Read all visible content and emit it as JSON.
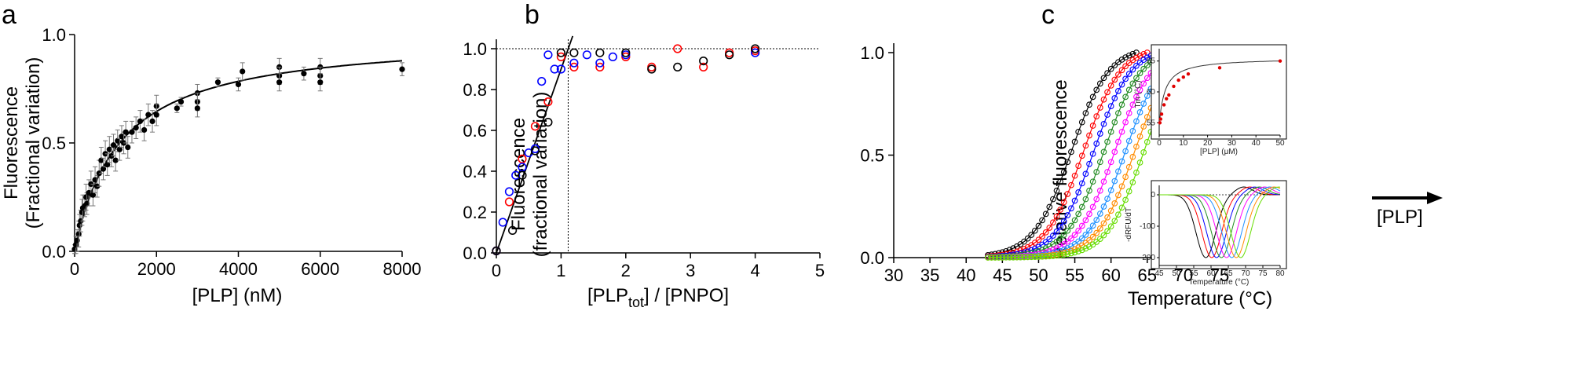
{
  "chart_data": [
    {
      "panel": "a",
      "type": "scatter",
      "xlabel": "[PLP] (nM)",
      "ylabel": [
        "Fluorescence",
        "(Fractional variation)"
      ],
      "xlim": [
        0,
        8000
      ],
      "ylim": [
        0,
        1.0
      ],
      "x_ticks": [
        0,
        2000,
        4000,
        6000,
        8000
      ],
      "y_ticks": [
        0.0,
        0.5,
        1.0
      ],
      "y_tick_labels": [
        "0.0",
        "0.5",
        "1.0"
      ],
      "fit": {
        "model": "hyperbolic",
        "Bmax": 1.0,
        "Kd": 1100
      },
      "points": [
        {
          "x": 0,
          "y": 0.01,
          "e": 0.02
        },
        {
          "x": 30,
          "y": 0.03,
          "e": 0.04
        },
        {
          "x": 60,
          "y": 0.05,
          "e": 0.05
        },
        {
          "x": 100,
          "y": 0.08,
          "e": 0.06
        },
        {
          "x": 120,
          "y": 0.12,
          "e": 0.05
        },
        {
          "x": 150,
          "y": 0.14,
          "e": 0.05
        },
        {
          "x": 180,
          "y": 0.18,
          "e": 0.06
        },
        {
          "x": 200,
          "y": 0.2,
          "e": 0.06
        },
        {
          "x": 250,
          "y": 0.21,
          "e": 0.05
        },
        {
          "x": 280,
          "y": 0.25,
          "e": 0.06
        },
        {
          "x": 300,
          "y": 0.22,
          "e": 0.05
        },
        {
          "x": 350,
          "y": 0.27,
          "e": 0.06
        },
        {
          "x": 400,
          "y": 0.31,
          "e": 0.06
        },
        {
          "x": 450,
          "y": 0.26,
          "e": 0.05
        },
        {
          "x": 500,
          "y": 0.33,
          "e": 0.06
        },
        {
          "x": 550,
          "y": 0.3,
          "e": 0.05
        },
        {
          "x": 600,
          "y": 0.36,
          "e": 0.06
        },
        {
          "x": 650,
          "y": 0.42,
          "e": 0.06
        },
        {
          "x": 700,
          "y": 0.38,
          "e": 0.05
        },
        {
          "x": 750,
          "y": 0.45,
          "e": 0.06
        },
        {
          "x": 800,
          "y": 0.4,
          "e": 0.05
        },
        {
          "x": 850,
          "y": 0.47,
          "e": 0.06
        },
        {
          "x": 900,
          "y": 0.44,
          "e": 0.05
        },
        {
          "x": 950,
          "y": 0.49,
          "e": 0.05
        },
        {
          "x": 1000,
          "y": 0.42,
          "e": 0.05
        },
        {
          "x": 1050,
          "y": 0.51,
          "e": 0.05
        },
        {
          "x": 1100,
          "y": 0.47,
          "e": 0.05
        },
        {
          "x": 1150,
          "y": 0.53,
          "e": 0.05
        },
        {
          "x": 1200,
          "y": 0.5,
          "e": 0.05
        },
        {
          "x": 1250,
          "y": 0.55,
          "e": 0.05
        },
        {
          "x": 1300,
          "y": 0.48,
          "e": 0.05
        },
        {
          "x": 1400,
          "y": 0.55,
          "e": 0.05
        },
        {
          "x": 1500,
          "y": 0.57,
          "e": 0.05
        },
        {
          "x": 1600,
          "y": 0.6,
          "e": 0.05
        },
        {
          "x": 1700,
          "y": 0.56,
          "e": 0.05
        },
        {
          "x": 1800,
          "y": 0.63,
          "e": 0.05
        },
        {
          "x": 1900,
          "y": 0.6,
          "e": 0.05
        },
        {
          "x": 2000,
          "y": 0.67,
          "e": 0.05
        },
        {
          "x": 2000,
          "y": 0.63,
          "e": 0.05
        },
        {
          "x": 2500,
          "y": 0.66,
          "e": 0.02
        },
        {
          "x": 2600,
          "y": 0.69,
          "e": 0.02
        },
        {
          "x": 3000,
          "y": 0.73,
          "e": 0.04
        },
        {
          "x": 3000,
          "y": 0.69,
          "e": 0.04
        },
        {
          "x": 3000,
          "y": 0.66,
          "e": 0.04
        },
        {
          "x": 3500,
          "y": 0.78,
          "e": 0.02
        },
        {
          "x": 4000,
          "y": 0.77,
          "e": 0.03
        },
        {
          "x": 4100,
          "y": 0.83,
          "e": 0.04
        },
        {
          "x": 5000,
          "y": 0.85,
          "e": 0.04
        },
        {
          "x": 5000,
          "y": 0.81,
          "e": 0.04
        },
        {
          "x": 5000,
          "y": 0.78,
          "e": 0.04
        },
        {
          "x": 5600,
          "y": 0.82,
          "e": 0.03
        },
        {
          "x": 6000,
          "y": 0.85,
          "e": 0.04
        },
        {
          "x": 6000,
          "y": 0.81,
          "e": 0.04
        },
        {
          "x": 6000,
          "y": 0.78,
          "e": 0.04
        },
        {
          "x": 8000,
          "y": 0.84,
          "e": 0.03
        }
      ]
    },
    {
      "panel": "b",
      "type": "scatter",
      "xlabel_parts": [
        "[PLP",
        "tot",
        "] / [PNPO]"
      ],
      "ylabel": [
        "Fluorescence",
        "(fractional variation)"
      ],
      "xlim": [
        0,
        5
      ],
      "ylim": [
        0,
        1.05
      ],
      "x_ticks": [
        0,
        1,
        2,
        3,
        4,
        5
      ],
      "y_ticks": [
        0.0,
        0.2,
        0.4,
        0.6,
        0.8,
        1.0
      ],
      "y_tick_labels": [
        "0.0",
        "0.2",
        "0.4",
        "0.6",
        "0.8",
        "1.0"
      ],
      "fit_line": {
        "slope": 0.9,
        "intercept": 0.0,
        "x_end": 1.18
      },
      "equivalence_x": 1.11,
      "plateau_y": 1.0,
      "series": [
        {
          "color": "#ff0000",
          "points": [
            [
              0,
              0.01
            ],
            [
              0.2,
              0.25
            ],
            [
              0.4,
              0.46
            ],
            [
              0.6,
              0.62
            ],
            [
              0.8,
              0.74
            ],
            [
              1.0,
              0.96
            ],
            [
              1.2,
              0.91
            ],
            [
              1.6,
              0.91
            ],
            [
              2.0,
              0.96
            ],
            [
              2.4,
              0.91
            ],
            [
              2.8,
              1.0
            ],
            [
              3.2,
              0.91
            ],
            [
              3.6,
              0.98
            ],
            [
              4.0,
              0.99
            ]
          ]
        },
        {
          "color": "#0000ff",
          "points": [
            [
              0,
              0.01
            ],
            [
              0.1,
              0.15
            ],
            [
              0.2,
              0.3
            ],
            [
              0.3,
              0.38
            ],
            [
              0.4,
              0.42
            ],
            [
              0.5,
              0.49
            ],
            [
              0.6,
              0.51
            ],
            [
              0.7,
              0.84
            ],
            [
              0.8,
              0.97
            ],
            [
              0.9,
              0.9
            ],
            [
              1.0,
              0.9
            ],
            [
              1.2,
              0.93
            ],
            [
              1.4,
              0.97
            ],
            [
              1.6,
              0.93
            ],
            [
              1.8,
              0.96
            ],
            [
              2.0,
              0.97
            ],
            [
              4.0,
              0.98
            ]
          ]
        },
        {
          "color": "#000000",
          "points": [
            [
              0,
              0.01
            ],
            [
              0.25,
              0.11
            ],
            [
              0.4,
              0.38
            ],
            [
              0.6,
              0.5
            ],
            [
              0.8,
              0.64
            ],
            [
              1.0,
              0.98
            ],
            [
              1.2,
              0.98
            ],
            [
              1.6,
              0.98
            ],
            [
              2.0,
              0.98
            ],
            [
              2.4,
              0.9
            ],
            [
              2.8,
              0.91
            ],
            [
              3.2,
              0.94
            ],
            [
              3.6,
              0.97
            ],
            [
              4.0,
              1.0
            ]
          ]
        }
      ]
    },
    {
      "panel": "c",
      "type": "line",
      "xlabel": "Temperature (°C)",
      "ylabel": "Relative fluorescence",
      "xlim": [
        30,
        75
      ],
      "ylim": [
        0,
        1.0
      ],
      "x_ticks": [
        30,
        35,
        40,
        45,
        50,
        55,
        60,
        65,
        70,
        75
      ],
      "y_ticks": [
        0.0,
        0.5,
        1.0
      ],
      "y_tick_labels": [
        "0.0",
        "0.5",
        "1.0"
      ],
      "arrow_label": "[PLP]",
      "curves": [
        {
          "color": "#000000",
          "tm": 54.5,
          "end": 63.5
        },
        {
          "color": "#ff0000",
          "tm": 56.2,
          "end": 65.0
        },
        {
          "color": "#0000ff",
          "tm": 57.6,
          "end": 66.5
        },
        {
          "color": "#228b22",
          "tm": 59.0,
          "end": 68.0
        },
        {
          "color": "#ff00ff",
          "tm": 60.5,
          "end": 69.5
        },
        {
          "color": "#1e90ff",
          "tm": 62.0,
          "end": 70.5
        },
        {
          "color": "#ff8c00",
          "tm": 63.3,
          "end": 71.5
        },
        {
          "color": "#66dd00",
          "tm": 64.6,
          "end": 72.5
        }
      ],
      "inset_tm": {
        "xlabel": "[PLP] (μM)",
        "ylabel": "Tm (°C)",
        "xlim": [
          0,
          50
        ],
        "ylim": [
          53,
          67
        ],
        "x_ticks": [
          0,
          10,
          20,
          30,
          40,
          50
        ],
        "y_ticks": [
          55,
          60,
          65
        ],
        "points": [
          [
            0.3,
            55.0
          ],
          [
            0.6,
            55.6
          ],
          [
            1,
            56.4
          ],
          [
            2,
            57.9
          ],
          [
            3,
            58.9
          ],
          [
            4,
            59.5
          ],
          [
            6,
            60.9
          ],
          [
            8,
            61.9
          ],
          [
            10,
            62.4
          ],
          [
            12,
            62.9
          ],
          [
            25,
            63.9
          ],
          [
            50,
            65.0
          ]
        ]
      },
      "inset_deriv": {
        "xlabel": "Temperature (°C)",
        "ylabel": "-dRFU/dT",
        "xlim": [
          45,
          80
        ],
        "ylim": [
          -225,
          30
        ],
        "x_ticks": [
          45,
          50,
          55,
          60,
          65,
          70,
          75,
          80
        ],
        "y_ticks": [
          0,
          -100,
          -200
        ],
        "y_tick_labels": [
          "0",
          "-100",
          "-200"
        ]
      }
    }
  ],
  "panel_letters": [
    "a",
    "b",
    "c"
  ]
}
